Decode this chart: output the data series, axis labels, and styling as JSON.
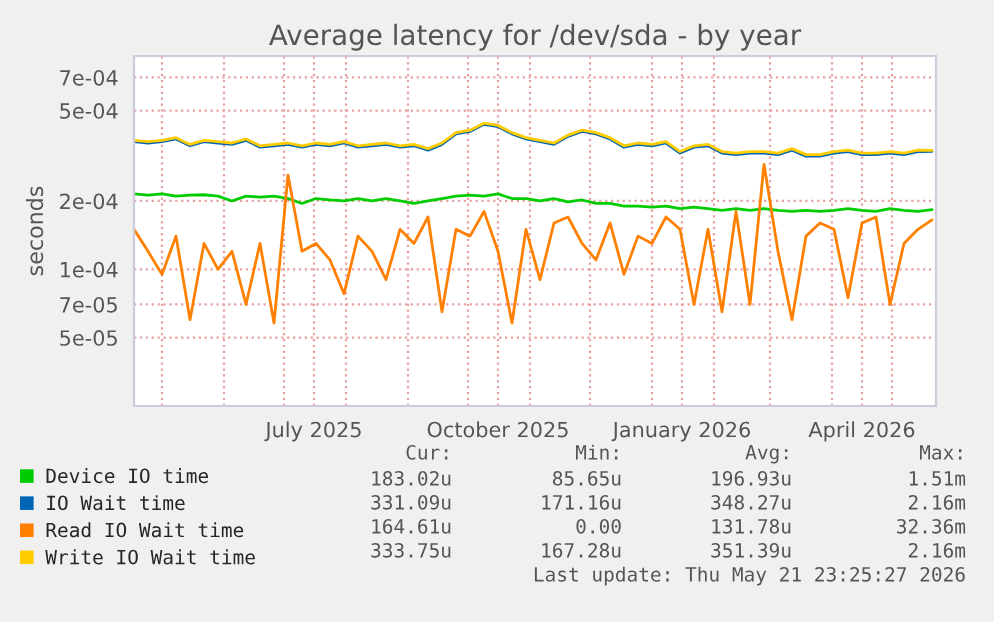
{
  "chart_data": {
    "type": "line",
    "title": "Average latency for /dev/sda - by year",
    "ylabel": "seconds",
    "x": [
      "2025-04-17",
      "2025-04-24",
      "2025-05-01",
      "2025-05-08",
      "2025-05-15",
      "2025-05-22",
      "2025-05-29",
      "2025-06-05",
      "2025-06-12",
      "2025-06-19",
      "2025-06-26",
      "2025-07-03",
      "2025-07-10",
      "2025-07-17",
      "2025-07-24",
      "2025-07-31",
      "2025-08-07",
      "2025-08-14",
      "2025-08-21",
      "2025-08-28",
      "2025-09-04",
      "2025-09-11",
      "2025-09-18",
      "2025-09-25",
      "2025-10-02",
      "2025-10-09",
      "2025-10-16",
      "2025-10-23",
      "2025-10-30",
      "2025-11-06",
      "2025-11-13",
      "2025-11-20",
      "2025-11-27",
      "2025-12-04",
      "2025-12-11",
      "2025-12-18",
      "2025-12-25",
      "2026-01-01",
      "2026-01-08",
      "2026-01-15",
      "2026-01-22",
      "2026-01-29",
      "2026-02-05",
      "2026-02-12",
      "2026-02-19",
      "2026-02-26",
      "2026-03-05",
      "2026-03-12",
      "2026-03-19",
      "2026-03-26",
      "2026-04-02",
      "2026-04-09",
      "2026-04-16",
      "2026-04-23",
      "2026-04-30",
      "2026-05-07",
      "2026-05-14",
      "2026-05-21"
    ],
    "series": [
      {
        "name": "Device IO time",
        "color": "#00cc00",
        "values": [
          0.000215,
          0.000212,
          0.000215,
          0.00021,
          0.000212,
          0.000213,
          0.00021,
          0.0002,
          0.00021,
          0.000208,
          0.00021,
          0.000205,
          0.000195,
          0.000205,
          0.000202,
          0.0002,
          0.000205,
          0.0002,
          0.000205,
          0.0002,
          0.000195,
          0.0002,
          0.000205,
          0.00021,
          0.000212,
          0.00021,
          0.000215,
          0.000205,
          0.000205,
          0.0002,
          0.000205,
          0.000198,
          0.000202,
          0.000195,
          0.000195,
          0.00019,
          0.00019,
          0.000188,
          0.00019,
          0.000185,
          0.000188,
          0.000185,
          0.000182,
          0.000185,
          0.000182,
          0.000185,
          0.000182,
          0.00018,
          0.000182,
          0.00018,
          0.000182,
          0.000185,
          0.000182,
          0.00018,
          0.000185,
          0.000182,
          0.00018,
          0.000183
        ]
      },
      {
        "name": "IO Wait time",
        "color": "#0066b3",
        "values": [
          0.000365,
          0.00036,
          0.000365,
          0.000375,
          0.00035,
          0.000365,
          0.00036,
          0.000355,
          0.00037,
          0.000345,
          0.00035,
          0.000355,
          0.000345,
          0.000355,
          0.00035,
          0.00036,
          0.000345,
          0.00035,
          0.000355,
          0.000345,
          0.00035,
          0.000335,
          0.000355,
          0.000395,
          0.000405,
          0.000435,
          0.000425,
          0.000395,
          0.000375,
          0.000365,
          0.000355,
          0.000385,
          0.000405,
          0.000395,
          0.000375,
          0.000345,
          0.000355,
          0.00035,
          0.00036,
          0.000325,
          0.000345,
          0.00035,
          0.000325,
          0.00032,
          0.000325,
          0.000325,
          0.00032,
          0.000335,
          0.000315,
          0.000315,
          0.000325,
          0.00033,
          0.00032,
          0.00032,
          0.000325,
          0.00032,
          0.00033,
          0.000331
        ]
      },
      {
        "name": "Read IO Wait time",
        "color": "#ff8000",
        "values": [
          0.00015,
          0.00012,
          9.5e-05,
          0.00014,
          6e-05,
          0.00013,
          0.0001,
          0.00012,
          7e-05,
          0.00013,
          5.8e-05,
          0.00026,
          0.00012,
          0.00013,
          0.00011,
          7.8e-05,
          0.00014,
          0.00012,
          9e-05,
          0.00015,
          0.00013,
          0.00017,
          6.5e-05,
          0.00015,
          0.00014,
          0.00018,
          0.00012,
          5.8e-05,
          0.00015,
          9e-05,
          0.00016,
          0.00017,
          0.00013,
          0.00011,
          0.00016,
          9.5e-05,
          0.00014,
          0.00013,
          0.00017,
          0.00015,
          7e-05,
          0.00015,
          6.5e-05,
          0.00018,
          7e-05,
          0.00029,
          0.00012,
          6e-05,
          0.00014,
          0.00016,
          0.00015,
          7.5e-05,
          0.00016,
          0.00017,
          7e-05,
          0.00013,
          0.00015,
          0.000165
        ]
      },
      {
        "name": "Write IO Wait time",
        "color": "#ffcc00",
        "values": [
          0.00037,
          0.000365,
          0.00037,
          0.00038,
          0.000355,
          0.00037,
          0.000365,
          0.00036,
          0.000375,
          0.00035,
          0.000355,
          0.00036,
          0.00035,
          0.00036,
          0.000355,
          0.000365,
          0.00035,
          0.000355,
          0.00036,
          0.00035,
          0.000355,
          0.00034,
          0.00036,
          0.0004,
          0.00041,
          0.00044,
          0.00043,
          0.0004,
          0.00038,
          0.00037,
          0.00036,
          0.00039,
          0.00041,
          0.0004,
          0.00038,
          0.00035,
          0.00036,
          0.000355,
          0.000365,
          0.00033,
          0.00035,
          0.000355,
          0.00033,
          0.000325,
          0.00033,
          0.00033,
          0.000325,
          0.00034,
          0.00032,
          0.00032,
          0.00033,
          0.000335,
          0.000325,
          0.000325,
          0.00033,
          0.000325,
          0.000335,
          0.000334
        ]
      }
    ],
    "log": "y",
    "ylim": [
      2.5e-05,
      0.00087
    ],
    "yticks": [
      {
        "value": 5e-05,
        "label": "5e-05"
      },
      {
        "value": 7e-05,
        "label": "7e-05"
      },
      {
        "value": 0.0001,
        "label": "1e-04"
      },
      {
        "value": 0.0002,
        "label": "2e-04"
      },
      {
        "value": 0.0005,
        "label": "5e-04"
      },
      {
        "value": 0.0007,
        "label": "7e-04"
      }
    ],
    "xlim": [
      "2025-04-17",
      "2026-05-23"
    ],
    "xticks": [
      {
        "value": "2025-05-01",
        "label": null
      },
      {
        "value": "2025-06-01",
        "label": null
      },
      {
        "value": "2025-07-01",
        "label": null
      },
      {
        "value": "2025-07-16",
        "label": "July 2025"
      },
      {
        "value": "2025-08-01",
        "label": null
      },
      {
        "value": "2025-09-01",
        "label": null
      },
      {
        "value": "2025-10-01",
        "label": null
      },
      {
        "value": "2025-10-16",
        "label": "October 2025"
      },
      {
        "value": "2025-11-01",
        "label": null
      },
      {
        "value": "2025-12-01",
        "label": null
      },
      {
        "value": "2026-01-01",
        "label": null
      },
      {
        "value": "2026-01-16",
        "label": "January 2026"
      },
      {
        "value": "2026-02-01",
        "label": null
      },
      {
        "value": "2026-03-01",
        "label": null
      },
      {
        "value": "2026-04-01",
        "label": null
      },
      {
        "value": "2026-04-16",
        "label": "April 2026"
      },
      {
        "value": "2026-05-01",
        "label": null
      }
    ],
    "grid": true,
    "legend": "bottom",
    "marker": "none",
    "line_style": "solid",
    "annotations": [
      "Cur:",
      "Min:",
      "Avg:",
      "Max:",
      "183.02u",
      "85.65u",
      "196.93u",
      "1.51m",
      "331.09u",
      "171.16u",
      "348.27u",
      "2.16m",
      "164.61u",
      "0.00",
      "131.78u",
      "32.36m",
      "333.75u",
      "167.28u",
      "351.39u",
      "2.16m",
      "Last update: Thu May 21 23:25:27 2026"
    ]
  }
}
